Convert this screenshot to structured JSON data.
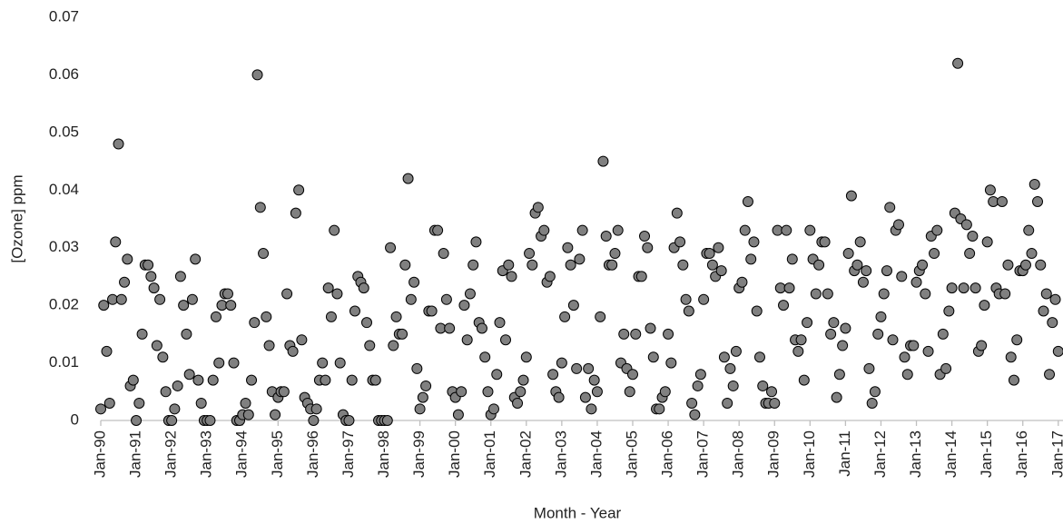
{
  "chart_data": {
    "type": "scatter",
    "x_label": "Month - Year",
    "y_label": "[Ozone] ppm",
    "x": [
      0,
      1,
      2,
      3,
      4,
      5,
      6,
      7,
      8,
      9,
      10,
      11,
      12,
      13,
      14,
      15,
      16,
      17,
      18,
      19,
      20,
      21,
      22,
      23,
      24,
      25,
      26,
      27,
      28,
      29,
      30,
      31,
      32,
      33,
      34,
      35,
      36,
      37,
      38,
      39,
      40,
      41,
      42,
      43,
      44,
      45,
      46,
      47,
      48,
      49,
      50,
      51,
      52,
      53,
      54,
      55,
      56,
      57,
      58,
      59,
      60,
      61,
      62,
      63,
      64,
      65,
      66,
      67,
      68,
      69,
      70,
      71,
      72,
      73,
      74,
      75,
      76,
      77,
      78,
      79,
      80,
      81,
      82,
      83,
      84,
      85,
      86,
      87,
      88,
      89,
      90,
      91,
      92,
      93,
      94,
      95,
      96,
      97,
      98,
      99,
      100,
      101,
      102,
      103,
      104,
      105,
      106,
      107,
      108,
      109,
      110,
      111,
      112,
      113,
      114,
      115,
      116,
      117,
      118,
      119,
      120,
      121,
      122,
      123,
      124,
      125,
      126,
      127,
      128,
      129,
      130,
      131,
      132,
      133,
      134,
      135,
      136,
      137,
      138,
      139,
      140,
      141,
      142,
      143,
      144,
      145,
      146,
      147,
      148,
      149,
      150,
      151,
      152,
      153,
      154,
      155,
      156,
      157,
      158,
      159,
      160,
      161,
      162,
      163,
      164,
      165,
      166,
      167,
      168,
      169,
      170,
      171,
      172,
      173,
      174,
      175,
      176,
      177,
      178,
      179,
      180,
      181,
      182,
      183,
      184,
      185,
      186,
      187,
      188,
      189,
      190,
      191,
      192,
      193,
      194,
      195,
      196,
      197,
      198,
      199,
      200,
      201,
      202,
      203,
      204,
      205,
      206,
      207,
      208,
      209,
      210,
      211,
      212,
      213,
      214,
      215,
      216,
      217,
      218,
      219,
      220,
      221,
      222,
      223,
      224,
      225,
      226,
      227,
      228,
      229,
      230,
      231,
      232,
      233,
      234,
      235,
      236,
      237,
      238,
      239,
      240,
      241,
      242,
      243,
      244,
      245,
      246,
      247,
      248,
      249,
      250,
      251,
      252,
      253,
      254,
      255,
      256,
      257,
      258,
      259,
      260,
      261,
      262,
      263,
      264,
      265,
      266,
      267,
      268,
      269,
      270,
      271,
      272,
      273,
      274,
      275,
      276,
      277,
      278,
      279,
      280,
      281,
      282,
      283,
      284,
      285,
      286,
      287,
      288,
      289,
      290,
      291,
      292,
      293,
      294,
      295,
      296,
      297,
      298,
      299,
      300,
      301,
      302,
      303,
      304,
      305,
      306,
      307,
      308,
      309,
      310,
      311,
      312,
      313,
      314,
      315,
      316,
      317,
      318,
      319,
      320,
      321,
      322,
      323,
      324
    ],
    "values": [
      0.002,
      0.02,
      0.012,
      0.003,
      0.021,
      0.031,
      0.048,
      0.021,
      0.024,
      0.028,
      0.006,
      0.007,
      0,
      0.003,
      0.015,
      0.027,
      0.027,
      0.025,
      0.023,
      0.013,
      0.021,
      0.011,
      0.005,
      0,
      0,
      0.002,
      0.006,
      0.025,
      0.02,
      0.015,
      0.008,
      0.021,
      0.028,
      0.007,
      0.003,
      0,
      0,
      0,
      0.007,
      0.018,
      0.01,
      0.02,
      0.022,
      0.022,
      0.02,
      0.01,
      0,
      0,
      0.001,
      0.003,
      0.001,
      0.007,
      0.017,
      0.06,
      0.037,
      0.029,
      0.018,
      0.013,
      0.005,
      0.001,
      0.004,
      0.005,
      0.005,
      0.022,
      0.013,
      0.012,
      0.036,
      0.04,
      0.014,
      0.004,
      0.003,
      0.002,
      0,
      0.002,
      0.007,
      0.01,
      0.007,
      0.023,
      0.018,
      0.033,
      0.022,
      0.01,
      0.001,
      0,
      0,
      0.007,
      0.019,
      0.025,
      0.024,
      0.023,
      0.017,
      0.013,
      0.007,
      0.007,
      0,
      0,
      0,
      0,
      0.03,
      0.013,
      0.018,
      0.015,
      0.015,
      0.027,
      0.042,
      0.021,
      0.024,
      0.009,
      0.002,
      0.004,
      0.006,
      0.019,
      0.019,
      0.033,
      0.033,
      0.016,
      0.029,
      0.021,
      0.016,
      0.005,
      0.004,
      0.001,
      0.005,
      0.02,
      0.014,
      0.022,
      0.027,
      0.031,
      0.017,
      0.016,
      0.011,
      0.005,
      0.001,
      0.002,
      0.008,
      0.017,
      0.026,
      0.014,
      0.027,
      0.025,
      0.004,
      0.003,
      0.005,
      0.007,
      0.011,
      0.029,
      0.027,
      0.036,
      0.037,
      0.032,
      0.033,
      0.024,
      0.025,
      0.008,
      0.005,
      0.004,
      0.01,
      0.018,
      0.03,
      0.027,
      0.02,
      0.009,
      0.028,
      0.033,
      0.004,
      0.009,
      0.002,
      0.007,
      0.005,
      0.018,
      0.045,
      0.032,
      0.027,
      0.027,
      0.029,
      0.033,
      0.01,
      0.015,
      0.009,
      0.005,
      0.008,
      0.015,
      0.025,
      0.025,
      0.032,
      0.03,
      0.016,
      0.011,
      0.002,
      0.002,
      0.004,
      0.005,
      0.015,
      0.01,
      0.03,
      0.036,
      0.031,
      0.027,
      0.021,
      0.019,
      0.003,
      0.001,
      0.006,
      0.008,
      0.021,
      0.029,
      0.029,
      0.027,
      0.025,
      0.03,
      0.026,
      0.011,
      0.003,
      0.009,
      0.006,
      0.012,
      0.023,
      0.024,
      0.033,
      0.038,
      0.028,
      0.031,
      0.019,
      0.011,
      0.006,
      0.003,
      0.003,
      0.005,
      0.003,
      0.033,
      0.023,
      0.02,
      0.033,
      0.023,
      0.028,
      0.014,
      0.012,
      0.014,
      0.007,
      0.017,
      0.033,
      0.028,
      0.022,
      0.027,
      0.031,
      0.031,
      0.022,
      0.015,
      0.017,
      0.004,
      0.008,
      0.013,
      0.016,
      0.029,
      0.039,
      0.026,
      0.027,
      0.031,
      0.024,
      0.026,
      0.009,
      0.003,
      0.005,
      0.015,
      0.018,
      0.022,
      0.026,
      0.037,
      0.014,
      0.033,
      0.034,
      0.025,
      0.011,
      0.008,
      0.013,
      0.013,
      0.024,
      0.026,
      0.027,
      0.022,
      0.012,
      0.032,
      0.029,
      0.033,
      0.008,
      0.015,
      0.009,
      0.019,
      0.023,
      0.036,
      0.062,
      0.035,
      0.023,
      0.034,
      0.029,
      0.032,
      0.023,
      0.012,
      0.013,
      0.02,
      0.031,
      0.04,
      0.038,
      0.023,
      0.022,
      0.038,
      0.022,
      0.027,
      0.011,
      0.007,
      0.014,
      0.026,
      0.026,
      0.027,
      0.033,
      0.029,
      0.041,
      0.038,
      0.027,
      0.019,
      0.022,
      0.008,
      0.017,
      0.021,
      0.012
    ],
    "color": "#808080",
    "xlim": [
      0,
      325.6
    ],
    "xticks": [
      {
        "value": 0,
        "label": "Jan-90"
      },
      {
        "value": 12,
        "label": "Jan-91"
      },
      {
        "value": 24,
        "label": "Jan-92"
      },
      {
        "value": 36,
        "label": "Jan-93"
      },
      {
        "value": 48,
        "label": "Jan-94"
      },
      {
        "value": 60,
        "label": "Jan-95"
      },
      {
        "value": 72,
        "label": "Jan-96"
      },
      {
        "value": 84,
        "label": "Jan-97"
      },
      {
        "value": 96,
        "label": "Jan-98"
      },
      {
        "value": 108,
        "label": "Jan-99"
      },
      {
        "value": 120,
        "label": "Jan-00"
      },
      {
        "value": 132,
        "label": "Jan-01"
      },
      {
        "value": 144,
        "label": "Jan-02"
      },
      {
        "value": 156,
        "label": "Jan-03"
      },
      {
        "value": 168,
        "label": "Jan-04"
      },
      {
        "value": 180,
        "label": "Jan-05"
      },
      {
        "value": 192,
        "label": "Jan-06"
      },
      {
        "value": 204,
        "label": "Jan-07"
      },
      {
        "value": 216,
        "label": "Jan-08"
      },
      {
        "value": 228,
        "label": "Jan-09"
      },
      {
        "value": 240,
        "label": "Jan-10"
      },
      {
        "value": 252,
        "label": "Jan-11"
      },
      {
        "value": 264,
        "label": "Jan-12"
      },
      {
        "value": 276,
        "label": "Jan-13"
      },
      {
        "value": 288,
        "label": "Jan-14"
      },
      {
        "value": 300,
        "label": "Jan-15"
      },
      {
        "value": 312,
        "label": "Jan-16"
      },
      {
        "value": 324,
        "label": "Jan-17"
      }
    ],
    "ylim": [
      0,
      0.07
    ],
    "yticks": [
      0,
      0.01,
      0.02,
      0.03,
      0.04,
      0.05,
      0.06,
      0.07
    ],
    "grid": false
  }
}
